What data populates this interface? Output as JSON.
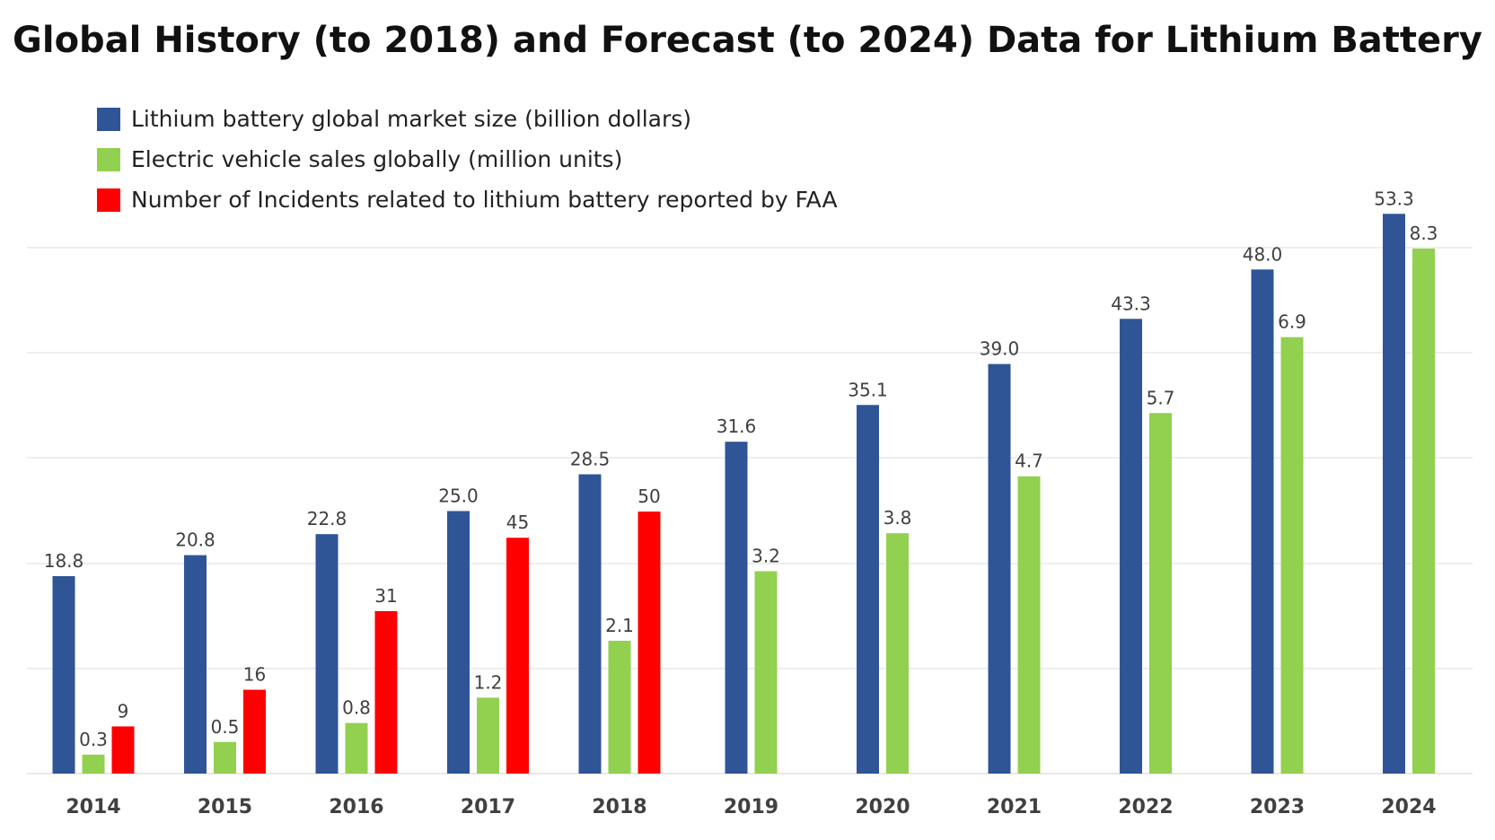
{
  "chart_data": {
    "type": "bar",
    "title": "Global History (to 2018) and Forecast (to 2024) Data for Lithium Battery",
    "xlabel": "",
    "ylabel": "",
    "categories": [
      "2014",
      "2015",
      "2016",
      "2017",
      "2018",
      "2019",
      "2020",
      "2021",
      "2022",
      "2023",
      "2024"
    ],
    "series": [
      {
        "name": "Lithium battery global market size  (billion dollars)",
        "color": "#2F5597",
        "values": [
          18.8,
          20.8,
          22.8,
          25.0,
          28.5,
          31.6,
          35.1,
          39.0,
          43.3,
          48.0,
          53.3
        ],
        "labels": [
          "18.8",
          "20.8",
          "22.8",
          "25.0",
          "28.5",
          "31.6",
          "35.1",
          "39.0",
          "43.3",
          "48.0",
          "53.3"
        ]
      },
      {
        "name": "Electric vehicle sales globally (million units)",
        "color": "#92D050",
        "values": [
          0.3,
          0.5,
          0.8,
          1.2,
          2.1,
          3.2,
          3.8,
          4.7,
          5.7,
          6.9,
          8.3
        ],
        "labels": [
          "0.3",
          "0.5",
          "0.8",
          "1.2",
          "2.1",
          "3.2",
          "3.8",
          "4.7",
          "5.7",
          "6.9",
          "8.3"
        ]
      },
      {
        "name": "Number of Incidents related to lithium battery reported by FAA",
        "color": "#FF0000",
        "values": [
          9,
          16,
          31,
          45,
          50,
          null,
          null,
          null,
          null,
          null,
          null
        ],
        "labels": [
          "9",
          "16",
          "31",
          "45",
          "50",
          "",
          "",
          "",
          "",
          "",
          ""
        ]
      }
    ],
    "grid": true,
    "legend_position": "top-left",
    "y_axis_visible": false
  }
}
